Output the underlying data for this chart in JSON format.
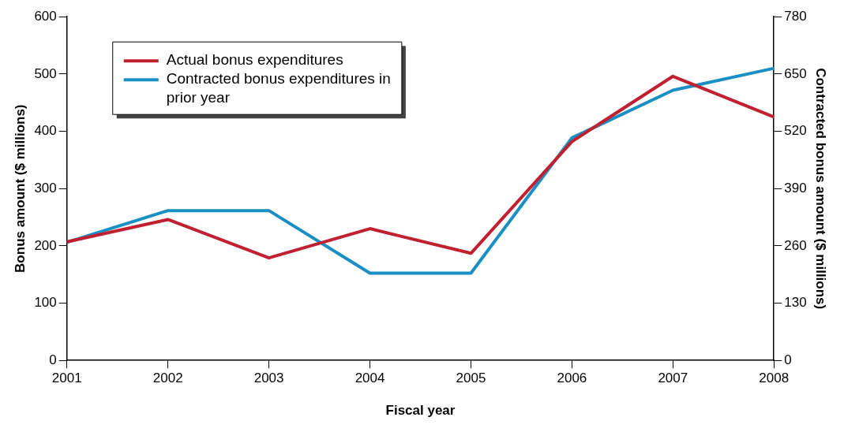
{
  "chart_data": {
    "type": "line",
    "xlabel": "Fiscal year",
    "ylabel": "Bonus amount ($ millions)",
    "y2label": "Contracted bonus amount ($ millions)",
    "x": [
      2001,
      2002,
      2003,
      2004,
      2005,
      2006,
      2007,
      2008
    ],
    "xlim": [
      2001,
      2008
    ],
    "xticks": [
      2001,
      2002,
      2003,
      2004,
      2005,
      2006,
      2007,
      2008
    ],
    "ylim": [
      0,
      600
    ],
    "yticks": [
      0,
      100,
      200,
      300,
      400,
      500,
      600
    ],
    "y2lim": [
      0,
      780
    ],
    "y2ticks": [
      0,
      130,
      260,
      390,
      520,
      650,
      780
    ],
    "grid": false,
    "legend": "top left",
    "marker": "none",
    "line_style": "solid",
    "series": [
      {
        "name": "Actual bonus expenditures",
        "color": "#c0202f",
        "values": [
          207,
          246,
          179,
          230,
          187,
          382,
          496,
          425
        ]
      },
      {
        "name": "Contracted bonus expenditures in prior year",
        "color": "#1a8fc4",
        "axis": "y2",
        "values": [
          268,
          340,
          340,
          198,
          198,
          505,
          613,
          663
        ]
      }
    ]
  }
}
